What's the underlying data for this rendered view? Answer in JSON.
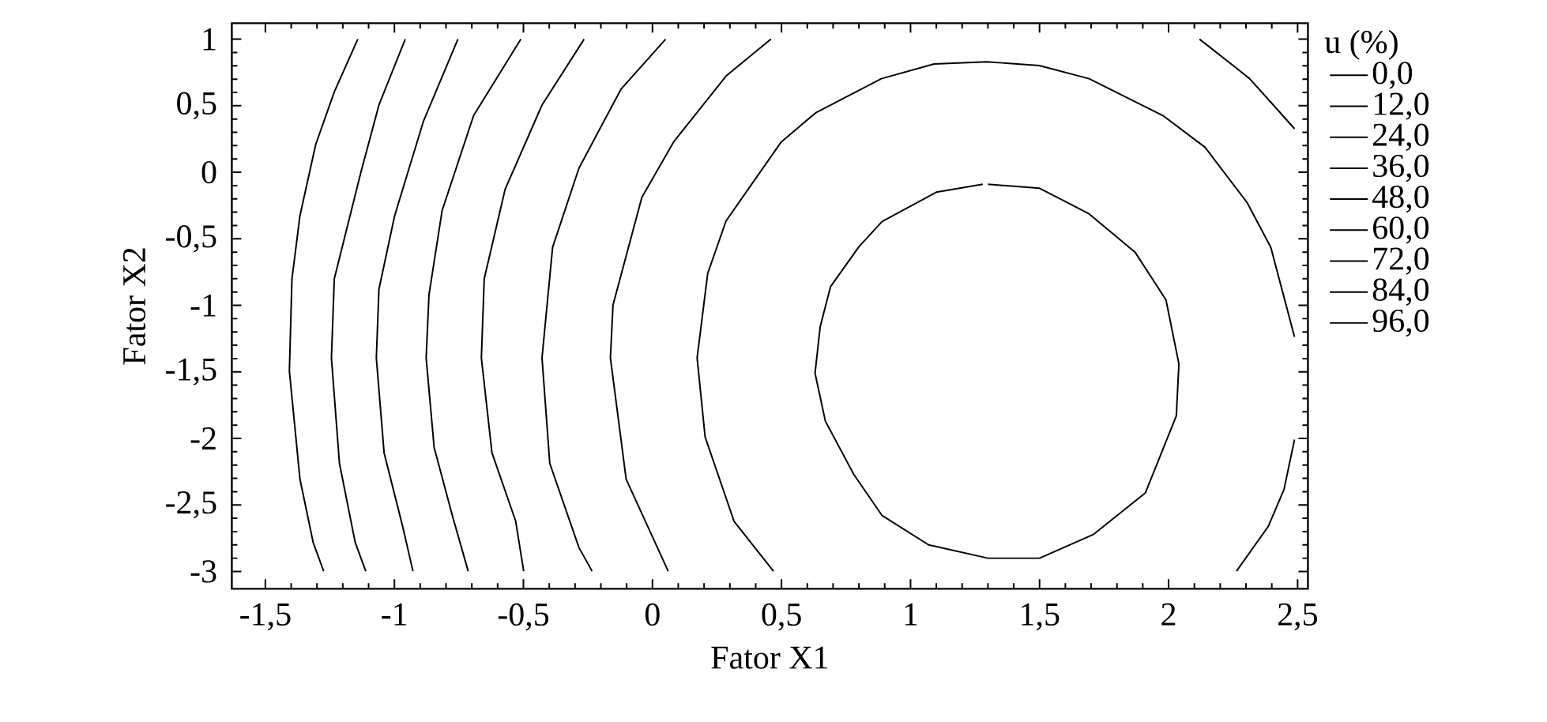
{
  "chart_data": {
    "type": "line",
    "xlabel": "Fator X1",
    "ylabel": "Fator X2",
    "legend_title": "u (%)",
    "legend": "right",
    "grid": false,
    "marker": "none",
    "line_style": "solid",
    "xlim": [
      -1.63,
      2.54
    ],
    "ylim": [
      -3.13,
      1.12
    ],
    "xticks": [
      {
        "value": -1.5,
        "label": "-1,5"
      },
      -1,
      {
        "value": -0.5,
        "label": "-0,5"
      },
      0,
      {
        "value": 0.5,
        "label": "0,5"
      },
      1,
      {
        "value": 1.5,
        "label": "1,5"
      },
      2,
      {
        "value": 2.5,
        "label": "2,5"
      }
    ],
    "yticks": [
      1,
      {
        "value": 0.5,
        "label": "0,5"
      },
      0,
      {
        "value": -0.5,
        "label": "-0,5"
      },
      -1,
      {
        "value": -1.5,
        "label": "-1,5"
      },
      -2,
      {
        "value": -2.5,
        "label": "-2,5"
      },
      -3
    ],
    "series": [
      {
        "name": "0,0",
        "color": "#000000",
        "x": [
          -1.142,
          -1.233,
          -1.305,
          -1.366,
          -1.397,
          -1.407,
          -1.366,
          -1.315,
          -1.274
        ],
        "values": [
          1.0,
          0.604,
          0.208,
          -0.326,
          -0.801,
          -1.494,
          -2.306,
          -2.781,
          -2.998
        ]
      },
      {
        "name": "12,0",
        "color": "#000000",
        "x": [
          -0.958,
          -1.06,
          -1.131,
          -1.233,
          -1.244,
          -1.213,
          -1.152,
          -1.111
        ],
        "values": [
          1.0,
          0.505,
          -0.009,
          -0.801,
          -1.395,
          -2.187,
          -2.781,
          -2.998
        ]
      },
      {
        "name": "24,0",
        "color": "#000000",
        "x": [
          -0.754,
          -0.887,
          -0.999,
          -1.06,
          -1.07,
          -1.04,
          -0.968,
          -0.928
        ],
        "values": [
          1.0,
          0.386,
          -0.326,
          -0.88,
          -1.395,
          -2.108,
          -2.662,
          -2.998
        ]
      },
      {
        "name": "36,0",
        "color": "#000000",
        "x": [
          -0.51,
          -0.693,
          -0.815,
          -0.866,
          -0.877,
          -0.846,
          -0.775,
          -0.714
        ],
        "values": [
          1.0,
          0.426,
          -0.287,
          -0.92,
          -1.395,
          -2.068,
          -2.583,
          -2.998
        ]
      },
      {
        "name": "48,0",
        "color": "#000000",
        "x": [
          -0.265,
          -0.428,
          -0.571,
          -0.652,
          -0.663,
          -0.622,
          -0.53,
          -0.499
        ],
        "values": [
          1.0,
          0.505,
          -0.128,
          -0.801,
          -1.395,
          -2.108,
          -2.622,
          -2.998
        ]
      },
      {
        "name": "60,0",
        "color": "#000000",
        "x": [
          0.051,
          -0.122,
          -0.285,
          -0.387,
          -0.428,
          -0.398,
          -0.285,
          -0.234
        ],
        "values": [
          1.0,
          0.624,
          0.03,
          -0.564,
          -1.395,
          -2.187,
          -2.82,
          -2.998
        ]
      },
      {
        "name": "72,0",
        "color": "#000000",
        "x": [
          0.459,
          0.285,
          0.082,
          -0.041,
          -0.153,
          -0.163,
          -0.102,
          0.061,
          null,
          2.12,
          2.263,
          2.314,
          2.406,
          2.488
        ],
        "values": [
          1.0,
          0.723,
          0.228,
          -0.188,
          -0.999,
          -1.395,
          -2.306,
          -2.998,
          null,
          1.0,
          0.782,
          0.703,
          0.505,
          0.327
        ]
      },
      {
        "name": "84,0",
        "color": "#000000",
        "x": [
          0.469,
          0.316,
          0.204,
          0.173,
          0.214,
          0.285,
          0.499,
          0.632,
          0.887,
          1.091,
          1.295,
          1.499,
          1.692,
          1.978,
          2.141,
          2.304,
          2.396,
          2.488,
          null,
          2.488,
          2.447,
          2.386,
          2.263
        ],
        "values": [
          -2.998,
          -2.622,
          -1.989,
          -1.395,
          -0.761,
          -0.366,
          0.228,
          0.446,
          0.703,
          0.814,
          0.83,
          0.802,
          0.703,
          0.426,
          0.188,
          -0.227,
          -0.564,
          -1.237,
          null,
          -2.009,
          -2.385,
          -2.662,
          -2.998
        ]
      },
      {
        "name": "96,0",
        "color": "#000000",
        "x": [
          1.3,
          1.5,
          1.69,
          1.87,
          1.99,
          2.04,
          2.03,
          1.91,
          1.71,
          1.5,
          1.3,
          1.07,
          0.89,
          0.78,
          0.67,
          0.63,
          0.65,
          0.69,
          0.8,
          0.89,
          1.1,
          1.28
        ],
        "values": [
          -0.09,
          -0.12,
          -0.31,
          -0.6,
          -0.96,
          -1.44,
          -1.83,
          -2.41,
          -2.72,
          -2.9,
          -2.9,
          -2.8,
          -2.58,
          -2.27,
          -1.87,
          -1.51,
          -1.16,
          -0.86,
          -0.56,
          -0.37,
          -0.15,
          -0.09
        ]
      }
    ]
  }
}
